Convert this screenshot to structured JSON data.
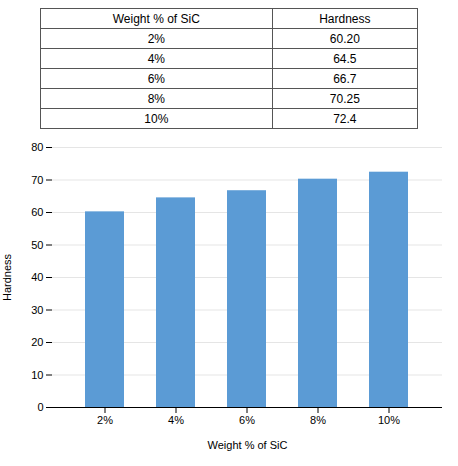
{
  "chart_data": {
    "type": "bar",
    "categories": [
      "2%",
      "4%",
      "6%",
      "8%",
      "10%"
    ],
    "values": [
      60.2,
      64.5,
      66.7,
      70.25,
      72.4
    ],
    "color": "#5B9BD5",
    "xlabel": "Weight % of SiC",
    "ylabel": "Hardness",
    "ylim": [
      0,
      80
    ],
    "yticks": [
      0,
      10,
      20,
      30,
      40,
      50,
      60,
      70,
      80
    ],
    "grid": true,
    "table": {
      "headers": [
        "Weight % of SiC",
        "Hardness"
      ],
      "rows": [
        [
          "2%",
          "60.20"
        ],
        [
          "4%",
          "64.5"
        ],
        [
          "6%",
          "66.7"
        ],
        [
          "8%",
          "70.25"
        ],
        [
          "10%",
          "72.4"
        ]
      ]
    }
  }
}
